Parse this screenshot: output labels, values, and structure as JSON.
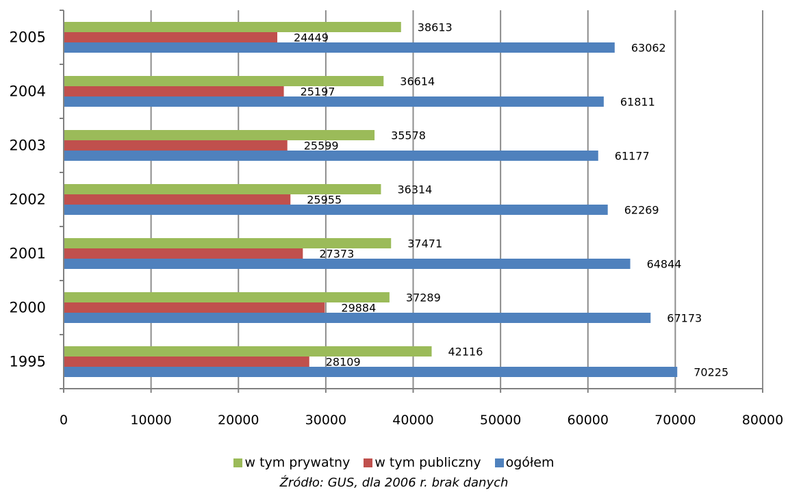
{
  "chart_data": {
    "type": "bar",
    "orientation": "horizontal",
    "categories": [
      "2005",
      "2004",
      "2003",
      "2002",
      "2001",
      "2000",
      "1995"
    ],
    "series": [
      {
        "name": "w tym prywatny",
        "color": "#9BBB59",
        "values": [
          38613,
          36614,
          35578,
          36314,
          37471,
          37289,
          42116
        ]
      },
      {
        "name": "w tym publiczny",
        "color": "#C0504D",
        "values": [
          24449,
          25197,
          25599,
          25955,
          27373,
          29884,
          28109
        ]
      },
      {
        "name": "ogółem",
        "color": "#4F81BD",
        "values": [
          63062,
          61811,
          61177,
          62269,
          64844,
          67173,
          70225
        ]
      }
    ],
    "xlim": [
      0,
      80000
    ],
    "xticks": [
      "0",
      "10000",
      "20000",
      "30000",
      "40000",
      "50000",
      "60000",
      "70000",
      "80000"
    ],
    "grid": true,
    "legend": "bottom"
  },
  "source_note": "Źródło: GUS, dla 2006 r. brak danych"
}
